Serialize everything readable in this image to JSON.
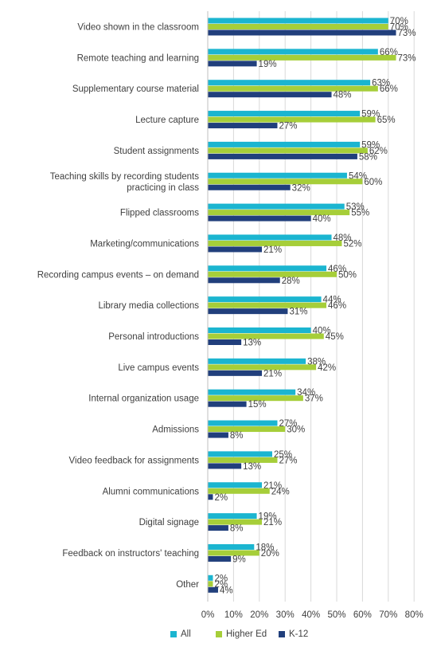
{
  "chart_data": {
    "type": "bar",
    "orientation": "horizontal",
    "categories": [
      "Video shown in the classroom",
      "Remote teaching and learning",
      "Supplementary course material",
      "Lecture capture",
      "Student assignments",
      "Teaching skills by recording students practicing in class",
      "Flipped classrooms",
      "Marketing/communications",
      "Recording campus events – on demand",
      "Library media collections",
      "Personal introductions",
      "Live campus events",
      "Internal organization usage",
      "Admissions",
      "Video feedback for assignments",
      "Alumni communications",
      "Digital signage",
      "Feedback on instructors' teaching",
      "Other"
    ],
    "series": [
      {
        "name": "All",
        "color": "#1BB5D0",
        "values": [
          70,
          66,
          63,
          59,
          59,
          54,
          53,
          48,
          46,
          44,
          40,
          38,
          34,
          27,
          25,
          21,
          19,
          18,
          2
        ]
      },
      {
        "name": "Higher Ed",
        "color": "#A6CE39",
        "values": [
          70,
          73,
          66,
          65,
          62,
          60,
          55,
          52,
          50,
          46,
          45,
          42,
          37,
          30,
          27,
          24,
          21,
          20,
          2
        ]
      },
      {
        "name": "K-12",
        "color": "#213F7C",
        "values": [
          73,
          19,
          48,
          27,
          58,
          32,
          40,
          21,
          28,
          31,
          13,
          21,
          15,
          8,
          13,
          2,
          8,
          9,
          4
        ]
      }
    ],
    "value_suffix": "%",
    "xlim": [
      0,
      80
    ],
    "xticks": [
      "0%",
      "10%",
      "20%",
      "30%",
      "40%",
      "50%",
      "60%",
      "70%",
      "80%"
    ],
    "legend_position": "bottom",
    "grid": true
  }
}
